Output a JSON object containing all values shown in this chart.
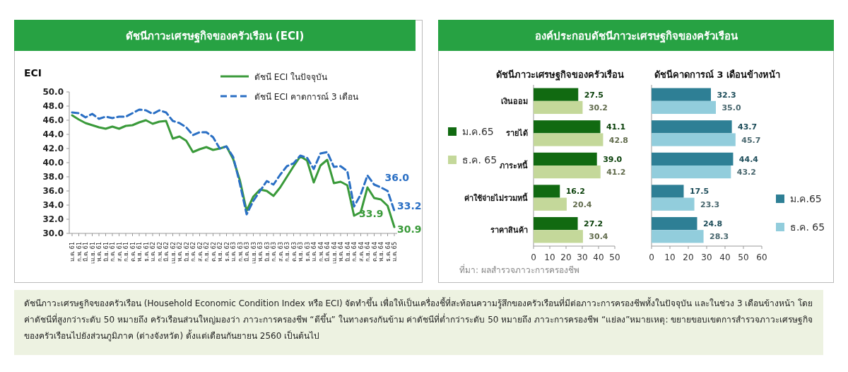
{
  "chart_data": [
    {
      "type": "line",
      "title": "ดัชนีภาวะเศรษฐกิจของครัวเรือน (ECI)",
      "ylabel": "ECI",
      "categories": [
        "ม.ค. 61",
        "ก.พ. 61",
        "มี.ค. 61",
        "เม.ย. 61",
        "พ.ค. 61",
        "มิ.ย. 61",
        "ก.ค. 61",
        "ส.ค. 61",
        "ก.ย. 61",
        "ต.ค. 61",
        "พ.ย. 61",
        "ธ.ค. 61",
        "ม.ค. 62",
        "ก.พ. 62",
        "มี.ค. 62",
        "เม.ย. 62",
        "พ.ค. 62",
        "มิ.ย. 62",
        "ก.ค. 62",
        "ส.ค. 62",
        "ก.ย. 62",
        "ต.ค. 62",
        "พ.ย. 62",
        "ธ.ค. 62",
        "ม.ค. 63",
        "ก.พ. 63",
        "มี.ค. 63",
        "เม.ย. 63",
        "พ.ค. 63",
        "มิ.ย. 63",
        "ก.ค. 63",
        "ส.ค. 63",
        "ก.ย. 63",
        "ต.ค. 63",
        "พ.ย. 63",
        "ธ.ค. 63",
        "ม.ค. 64",
        "ก.พ. 64",
        "มี.ค. 64",
        "เม.ย. 64",
        "พ.ค. 64",
        "มิ.ย. 64",
        "ก.ค. 64",
        "ส.ค. 64",
        "ก.ย. 64",
        "ต.ค. 64",
        "พ.ย. 64",
        "ธ.ค. 64",
        "ม.ค. 65"
      ],
      "series": [
        {
          "name": "ดัชนี ECI ในปัจจุบัน",
          "color": "#3a9a3a",
          "line_style": "solid",
          "values": [
            46.7,
            46.1,
            45.6,
            45.3,
            45.0,
            44.8,
            45.1,
            44.8,
            45.2,
            45.3,
            45.7,
            46.0,
            45.5,
            45.8,
            45.9,
            43.4,
            43.7,
            43.1,
            41.5,
            41.9,
            42.2,
            41.8,
            42.0,
            42.3,
            40.5,
            37.5,
            33.2,
            35.2,
            36.2,
            36.0,
            35.3,
            36.5,
            38.0,
            39.5,
            40.9,
            40.3,
            37.2,
            39.6,
            40.4,
            37.1,
            37.3,
            36.8,
            32.5,
            33.0,
            36.5,
            35.0,
            34.8,
            33.9,
            30.9
          ],
          "value_labels": [
            null,
            null,
            null,
            null,
            null,
            null,
            null,
            null,
            null,
            null,
            null,
            null,
            null,
            null,
            null,
            null,
            null,
            null,
            null,
            null,
            null,
            null,
            null,
            null,
            null,
            null,
            null,
            null,
            null,
            null,
            null,
            null,
            null,
            null,
            null,
            null,
            null,
            null,
            null,
            null,
            null,
            null,
            null,
            null,
            null,
            null,
            null,
            "33.9",
            "30.9"
          ]
        },
        {
          "name": "ดัชนี ECI คาดการณ์ 3 เดือน",
          "color": "#2a6fc4",
          "line_style": "dashed",
          "values": [
            47.1,
            47.0,
            46.4,
            46.9,
            46.2,
            46.5,
            46.3,
            46.5,
            46.5,
            47.0,
            47.5,
            47.4,
            46.9,
            47.4,
            47.1,
            45.9,
            45.6,
            45.0,
            43.9,
            44.3,
            44.3,
            43.6,
            42.0,
            42.3,
            40.8,
            37.0,
            32.7,
            34.6,
            36.0,
            37.4,
            36.9,
            38.3,
            39.5,
            39.9,
            41.0,
            40.7,
            39.1,
            41.3,
            41.5,
            39.4,
            39.5,
            38.8,
            33.8,
            35.5,
            38.2,
            36.9,
            36.5,
            36.0,
            33.2
          ],
          "value_labels": [
            null,
            null,
            null,
            null,
            null,
            null,
            null,
            null,
            null,
            null,
            null,
            null,
            null,
            null,
            null,
            null,
            null,
            null,
            null,
            null,
            null,
            null,
            null,
            null,
            null,
            null,
            null,
            null,
            null,
            null,
            null,
            null,
            null,
            null,
            null,
            null,
            null,
            null,
            null,
            null,
            null,
            null,
            null,
            null,
            null,
            null,
            null,
            "36.0",
            "33.2"
          ]
        }
      ],
      "ylim": [
        30,
        50
      ],
      "yticks": [
        {
          "value": 30,
          "label": "30.0"
        },
        {
          "value": 32,
          "label": "32.0"
        },
        {
          "value": 34,
          "label": "34.0"
        },
        {
          "value": 36,
          "label": "36.0"
        },
        {
          "value": 38,
          "label": "38.0"
        },
        {
          "value": 40,
          "label": "40.0"
        },
        {
          "value": 42,
          "label": "42.0"
        },
        {
          "value": 44,
          "label": "44.0"
        },
        {
          "value": 46,
          "label": "46.0"
        },
        {
          "value": 48,
          "label": "48.0"
        },
        {
          "value": 50,
          "label": "50.0"
        }
      ],
      "legend": "top right"
    },
    {
      "type": "bar",
      "orientation": "horizontal",
      "title": "องค์ประกอบดัชนีภาวะเศรษฐกิจของครัวเรือน",
      "subtitle": "ดัชนีภาวะเศรษฐกิจของครัวเรือน",
      "categories": [
        "เงินออม",
        "รายได้",
        "ภาระหนี้",
        "ค่าใช้จ่ายไม่รวมหนี้",
        "ราคาสินค้า"
      ],
      "series": [
        {
          "name": "ม.ค.65",
          "color": "#116a11",
          "values": [
            27.5,
            41.1,
            39.0,
            16.2,
            27.2
          ],
          "value_labels": [
            "27.5",
            "41.1",
            "39.0",
            "16.2",
            "27.2"
          ]
        },
        {
          "name": "ธ.ค. 65",
          "color": "#c4d89a",
          "values": [
            30.2,
            42.8,
            41.2,
            20.4,
            30.4
          ],
          "value_labels": [
            "30.2",
            "42.8",
            "41.2",
            "20.4",
            "30.4"
          ]
        }
      ],
      "xlim": [
        0,
        50
      ],
      "xticks": [
        0,
        10,
        20,
        30,
        40,
        50
      ],
      "legend": "left",
      "annotations": [
        "ที่มา: ผลสำรวจภาวะการครองชีพ"
      ]
    },
    {
      "type": "bar",
      "orientation": "horizontal",
      "title": "ดัชนีคาดการณ์ 3 เดือนข้างหน้า",
      "categories": [
        null,
        null,
        null,
        null,
        null
      ],
      "series": [
        {
          "name": "ม.ค.65",
          "color": "#2e7f95",
          "values": [
            32.3,
            43.7,
            44.4,
            17.5,
            24.8
          ],
          "value_labels": [
            "32.3",
            "43.7",
            "44.4",
            "17.5",
            "24.8"
          ]
        },
        {
          "name": "ธ.ค. 65",
          "color": "#92cddc",
          "values": [
            35.0,
            45.7,
            43.2,
            23.3,
            28.3
          ],
          "value_labels": [
            "35.0",
            "45.7",
            "43.2",
            "23.3",
            "28.3"
          ]
        }
      ],
      "xlim": [
        0,
        60
      ],
      "xticks": [
        0,
        10,
        20,
        30,
        40,
        50,
        60
      ],
      "legend": "right"
    },
    {
      "type": "other",
      "annotations": [
        "ดัชนีภาวะเศรษฐกิจของครัวเรือน (Household Economic Condition Index หรือ ECI) จัดทำขึ้น เพื่อให้เป็นเครื่องชี้ที่สะท้อนความรู้สึกของครัวเรือนที่มีต่อภาวะการครองชีพทั้งในปัจจุบัน และในช่วง 3 เดือนข้างหน้า โดยค่าดัชนีที่สูงกว่าระดับ 50 หมายถึง ครัวเรือนส่วนใหญ่มองว่า ภาวะการครองชีพ “ดีขึ้น” ในทางตรงกันข้าม ค่าดัชนีที่ต่ำกว่าระดับ 50 หมายถึง ภาวะการครองชีพ “แย่ลง”",
        "หมายเหตุ: ขยายขอบเขตการสำรวจภาวะเศรษฐกิจของครัวเรือนไปยังส่วนภูมิภาค (ต่างจังหวัด) ตั้งแต่เดือนกันยายน 2560 เป็นต้นไป"
      ]
    }
  ]
}
